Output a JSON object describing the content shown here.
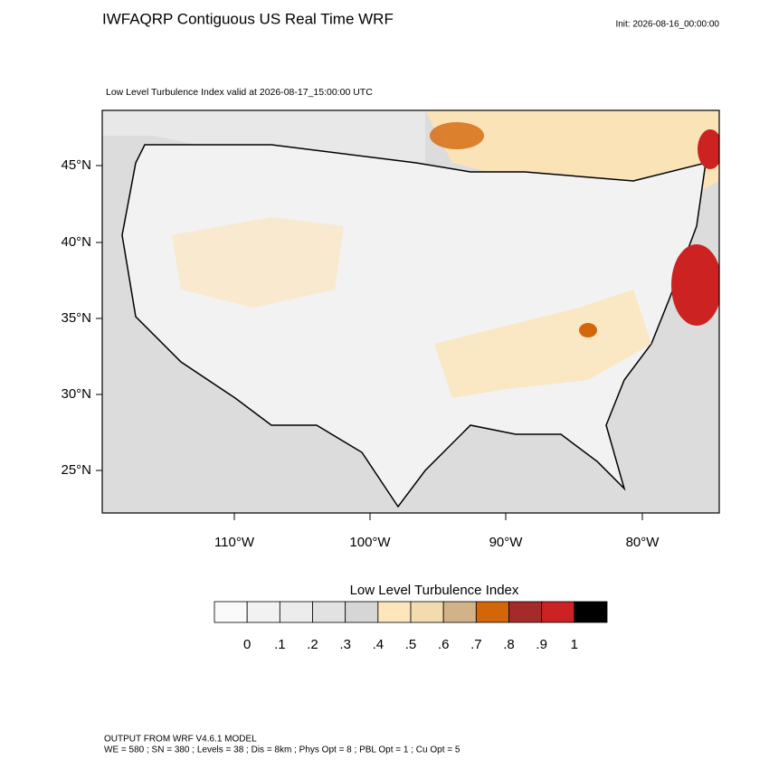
{
  "header": {
    "title": "IWFAQRP Contiguous US Real Time WRF",
    "init": "Init: 2026-08-16_00:00:00"
  },
  "map": {
    "subtitle": "Low Level Turbulence Index valid at 2026-08-17_15:00:00 UTC",
    "lat_labels": [
      "45°N",
      "40°N",
      "35°N",
      "30°N",
      "25°N"
    ],
    "lon_labels": [
      "110°W",
      "100°W",
      "90°W",
      "80°W"
    ]
  },
  "colorbar": {
    "title": "Low Level Turbulence Index",
    "colors": [
      "#fafafa",
      "#f2f2f2",
      "#ececec",
      "#e2e2e2",
      "#d6d6d6",
      "#fde5bc",
      "#f3dbb0",
      "#d2b288",
      "#d4660a",
      "#a52a2a",
      "#cc2222",
      "#000000"
    ],
    "labels": [
      "0",
      ".1",
      ".2",
      ".3",
      ".4",
      ".5",
      ".6",
      ".7",
      ".8",
      ".9",
      "1"
    ]
  },
  "footer": {
    "lines": [
      "OUTPUT FROM WRF V4.6.1 MODEL",
      "WE = 580 ; SN = 380 ; Levels = 38 ; Dis = 8km ; Phys Opt = 8 ; PBL Opt = 1 ; Cu Opt = 5"
    ]
  }
}
